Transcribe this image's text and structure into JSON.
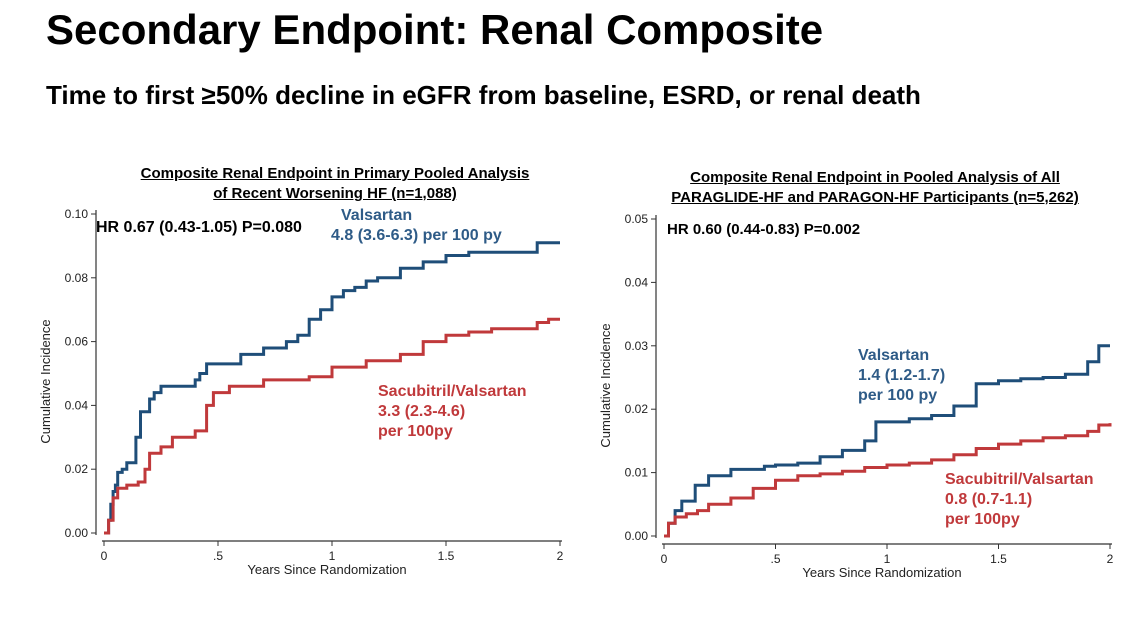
{
  "slide": {
    "title": "Secondary Endpoint: Renal Composite",
    "subtitle": "Time to first ≥50% decline in eGFR from baseline, ESRD, or renal death"
  },
  "colors": {
    "valsartan": "#1f4e79",
    "sacubitril": "#c0393b",
    "axis": "#333333"
  },
  "chart_data": [
    {
      "type": "line",
      "title_lines": [
        "Composite Renal Endpoint in Primary Pooled Analysis",
        "of Recent Worsening HF (n=1,088)"
      ],
      "xlabel": "Years Since Randomization",
      "ylabel": "Cumulative Incidence",
      "xlim": [
        0,
        2
      ],
      "ylim": [
        0,
        0.1
      ],
      "xticks": [
        0,
        0.5,
        1,
        1.5,
        2
      ],
      "xtick_labels": [
        "0",
        ".5",
        "1",
        "1.5",
        "2"
      ],
      "yticks": [
        0,
        0.02,
        0.04,
        0.06,
        0.08,
        0.1
      ],
      "ytick_labels": [
        "0.00",
        "0.02",
        "0.04",
        "0.06",
        "0.08",
        "0.10"
      ],
      "grid": false,
      "hr_text": "HR 0.67 (0.43-1.05) P=0.080",
      "annotations": {
        "valsartan": [
          "Valsartan",
          "4.8 (3.6-6.3) per 100 py"
        ],
        "sacubitril": [
          "Sacubitril/Valsartan",
          "3.3 (2.3-4.6)",
          "per 100py"
        ]
      },
      "series": [
        {
          "name": "Valsartan",
          "x": [
            0,
            0.02,
            0.03,
            0.04,
            0.05,
            0.06,
            0.08,
            0.1,
            0.14,
            0.16,
            0.2,
            0.22,
            0.25,
            0.27,
            0.3,
            0.35,
            0.4,
            0.42,
            0.45,
            0.5,
            0.55,
            0.6,
            0.7,
            0.75,
            0.8,
            0.85,
            0.9,
            0.95,
            1.0,
            1.02,
            1.05,
            1.1,
            1.15,
            1.2,
            1.3,
            1.4,
            1.5,
            1.6,
            1.7,
            1.75,
            1.8,
            1.85,
            1.9,
            1.95,
            2.0
          ],
          "y": [
            0,
            0.004,
            0.009,
            0.013,
            0.015,
            0.019,
            0.02,
            0.022,
            0.03,
            0.038,
            0.042,
            0.044,
            0.046,
            0.046,
            0.046,
            0.046,
            0.048,
            0.05,
            0.053,
            0.053,
            0.053,
            0.056,
            0.058,
            0.058,
            0.06,
            0.062,
            0.067,
            0.07,
            0.074,
            0.074,
            0.076,
            0.077,
            0.079,
            0.08,
            0.083,
            0.085,
            0.087,
            0.088,
            0.088,
            0.088,
            0.088,
            0.088,
            0.091,
            0.091,
            0.091
          ]
        },
        {
          "name": "Sacubitril/Valsartan",
          "x": [
            0,
            0.02,
            0.04,
            0.06,
            0.1,
            0.15,
            0.18,
            0.2,
            0.25,
            0.3,
            0.4,
            0.45,
            0.48,
            0.5,
            0.55,
            0.6,
            0.7,
            0.8,
            0.9,
            1.0,
            1.1,
            1.15,
            1.2,
            1.3,
            1.4,
            1.5,
            1.6,
            1.7,
            1.8,
            1.9,
            1.95,
            2.0
          ],
          "y": [
            0,
            0.004,
            0.011,
            0.014,
            0.015,
            0.016,
            0.02,
            0.025,
            0.027,
            0.03,
            0.032,
            0.04,
            0.044,
            0.044,
            0.046,
            0.046,
            0.048,
            0.048,
            0.049,
            0.052,
            0.052,
            0.054,
            0.054,
            0.056,
            0.06,
            0.062,
            0.063,
            0.064,
            0.064,
            0.066,
            0.067,
            0.067
          ]
        }
      ]
    },
    {
      "type": "line",
      "title_lines": [
        "Composite Renal Endpoint  in Pooled Analysis of All",
        "PARAGLIDE-HF and PARAGON-HF Participants (n=5,262)"
      ],
      "xlabel": "Years Since Randomization",
      "ylabel": "Cumulative Incidence",
      "xlim": [
        0,
        2
      ],
      "ylim": [
        0,
        0.05
      ],
      "xticks": [
        0,
        0.5,
        1,
        1.5,
        2
      ],
      "xtick_labels": [
        "0",
        ".5",
        "1",
        "1.5",
        "2"
      ],
      "yticks": [
        0,
        0.01,
        0.02,
        0.03,
        0.04,
        0.05
      ],
      "ytick_labels": [
        "0.00",
        "0.01",
        "0.02",
        "0.03",
        "0.04",
        "0.05"
      ],
      "grid": false,
      "hr_text": "HR 0.60 (0.44-0.83) P=0.002",
      "annotations": {
        "valsartan": [
          "Valsartan",
          "1.4 (1.2-1.7)",
          "per 100 py"
        ],
        "sacubitril": [
          "Sacubitril/Valsartan",
          "0.8 (0.7-1.1)",
          "per 100py"
        ]
      },
      "series": [
        {
          "name": "Valsartan",
          "x": [
            0,
            0.02,
            0.05,
            0.08,
            0.14,
            0.2,
            0.3,
            0.4,
            0.45,
            0.5,
            0.6,
            0.7,
            0.8,
            0.9,
            0.95,
            1.0,
            1.1,
            1.2,
            1.3,
            1.4,
            1.5,
            1.6,
            1.7,
            1.8,
            1.9,
            1.95,
            2.0
          ],
          "y": [
            0,
            0.002,
            0.004,
            0.0055,
            0.008,
            0.0095,
            0.0105,
            0.0105,
            0.011,
            0.0112,
            0.0115,
            0.0125,
            0.0135,
            0.015,
            0.018,
            0.018,
            0.0185,
            0.019,
            0.0205,
            0.024,
            0.0245,
            0.0248,
            0.025,
            0.0255,
            0.0275,
            0.03,
            0.03
          ]
        },
        {
          "name": "Sacubitril/Valsartan",
          "x": [
            0,
            0.02,
            0.05,
            0.1,
            0.15,
            0.2,
            0.3,
            0.4,
            0.5,
            0.6,
            0.7,
            0.8,
            0.9,
            1.0,
            1.1,
            1.2,
            1.3,
            1.4,
            1.5,
            1.6,
            1.7,
            1.8,
            1.9,
            1.95,
            2.0
          ],
          "y": [
            0,
            0.002,
            0.003,
            0.0035,
            0.004,
            0.005,
            0.006,
            0.0075,
            0.0088,
            0.0095,
            0.0098,
            0.0102,
            0.0108,
            0.0112,
            0.0115,
            0.012,
            0.0128,
            0.0138,
            0.0145,
            0.015,
            0.0155,
            0.0158,
            0.0165,
            0.0175,
            0.0178
          ]
        }
      ]
    }
  ]
}
